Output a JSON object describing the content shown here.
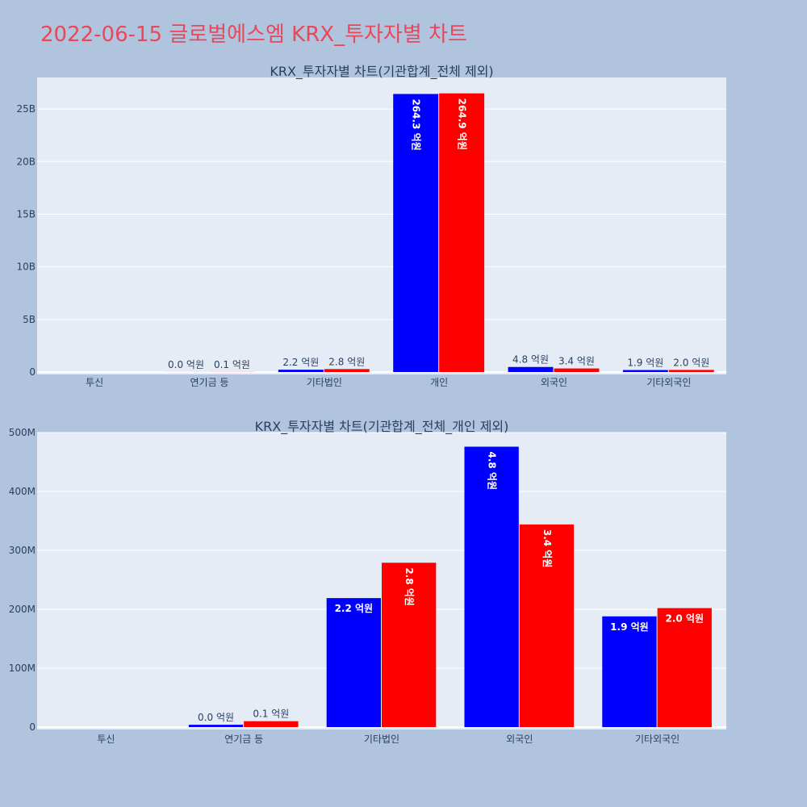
{
  "page": {
    "title": "2022-06-15 글로벌에스엠 KRX_투자자별 차트"
  },
  "colors": {
    "background": "#b0c4de",
    "plot_bg": "#e5ecf6",
    "buy": "#0000ff",
    "sell": "#ff0000",
    "title": "#e8485a",
    "axis_text": "#2a3f5f"
  },
  "chart_data": [
    {
      "type": "bar",
      "title": "KRX_투자자별 차트(기관합계_전체 제외)",
      "categories": [
        "투신",
        "연기금 등",
        "기타법인",
        "개인",
        "외국인",
        "기타외국인"
      ],
      "series": [
        {
          "color": "#0000ff",
          "values": [
            0,
            4000000,
            220000000,
            26430000000,
            480000000,
            190000000
          ],
          "labels": [
            "",
            "0.0 억원",
            "2.2 억원",
            "264.3 억원",
            "4.8 억원",
            "1.9 억원"
          ]
        },
        {
          "color": "#ff0000",
          "values": [
            0,
            10000000,
            280000000,
            26490000000,
            340000000,
            200000000
          ],
          "labels": [
            "",
            "0.1 억원",
            "2.8 억원",
            "264.9 억원",
            "3.4 억원",
            "2.0 억원"
          ]
        }
      ],
      "ylim": [
        0,
        28000000000
      ],
      "yticks": [
        0,
        5000000000,
        10000000000,
        15000000000,
        20000000000,
        25000000000
      ],
      "ytick_labels": [
        "0",
        "5B",
        "10B",
        "15B",
        "20B",
        "25B"
      ],
      "grid": true
    },
    {
      "type": "bar",
      "title": "KRX_투자자별 차트(기관합계_전체_개인 제외)",
      "categories": [
        "투신",
        "연기금 등",
        "기타법인",
        "외국인",
        "기타외국인"
      ],
      "series": [
        {
          "color": "#0000ff",
          "values": [
            0,
            4000000,
            219000000,
            476000000,
            188000000
          ],
          "labels": [
            "",
            "0.0 억원",
            "2.2 억원",
            "4.8 억원",
            "1.9 억원"
          ]
        },
        {
          "color": "#ff0000",
          "values": [
            0,
            10000000,
            279000000,
            344000000,
            202000000
          ],
          "labels": [
            "",
            "0.1 억원",
            "2.8 억원",
            "3.4 억원",
            "2.0 억원"
          ]
        }
      ],
      "ylim": [
        0,
        500000000
      ],
      "yticks": [
        0,
        100000000,
        200000000,
        300000000,
        400000000,
        500000000
      ],
      "ytick_labels": [
        "0",
        "100M",
        "200M",
        "300M",
        "400M",
        "500M"
      ],
      "grid": true
    }
  ]
}
